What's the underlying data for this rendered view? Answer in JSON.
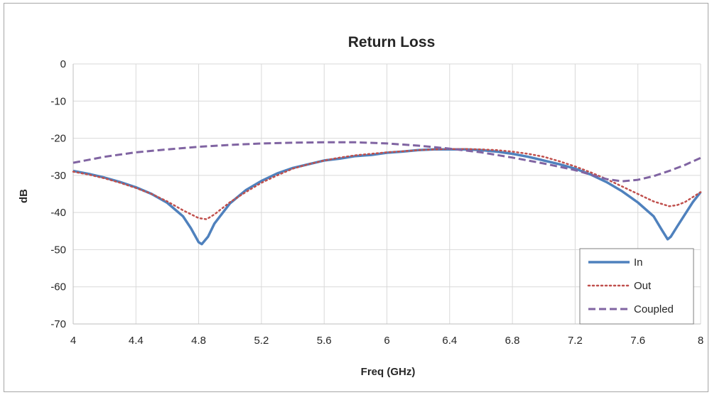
{
  "chart_data": {
    "type": "line",
    "title": "Return Loss",
    "xlabel": "Freq (GHz)",
    "ylabel": "dB",
    "xlim": [
      4,
      8
    ],
    "ylim": [
      -70,
      0
    ],
    "x_ticks": [
      "4",
      "4.4",
      "4.8",
      "5.2",
      "5.6",
      "6",
      "6.4",
      "6.8",
      "7.2",
      "7.6",
      "8"
    ],
    "y_ticks": [
      "0",
      "-10",
      "-20",
      "-30",
      "-40",
      "-50",
      "-60",
      "-70"
    ],
    "grid": true,
    "legend_position": "bottom-right",
    "series": [
      {
        "name": "In",
        "color": "#4f81bd",
        "style": "solid",
        "points": [
          [
            4.0,
            -28.8
          ],
          [
            4.1,
            -29.6
          ],
          [
            4.2,
            -30.6
          ],
          [
            4.3,
            -31.8
          ],
          [
            4.4,
            -33.2
          ],
          [
            4.5,
            -35.0
          ],
          [
            4.6,
            -37.4
          ],
          [
            4.7,
            -41.0
          ],
          [
            4.75,
            -44.2
          ],
          [
            4.8,
            -48.0
          ],
          [
            4.82,
            -48.5
          ],
          [
            4.86,
            -46.5
          ],
          [
            4.9,
            -43.0
          ],
          [
            5.0,
            -37.5
          ],
          [
            5.1,
            -34.0
          ],
          [
            5.2,
            -31.5
          ],
          [
            5.3,
            -29.5
          ],
          [
            5.4,
            -28.0
          ],
          [
            5.5,
            -27.0
          ],
          [
            5.6,
            -26.0
          ],
          [
            5.7,
            -25.5
          ],
          [
            5.8,
            -24.8
          ],
          [
            5.9,
            -24.5
          ],
          [
            6.0,
            -23.9
          ],
          [
            6.1,
            -23.6
          ],
          [
            6.2,
            -23.2
          ],
          [
            6.3,
            -23.0
          ],
          [
            6.4,
            -23.0
          ],
          [
            6.5,
            -23.0
          ],
          [
            6.6,
            -23.2
          ],
          [
            6.7,
            -23.6
          ],
          [
            6.8,
            -24.2
          ],
          [
            6.9,
            -25.0
          ],
          [
            7.0,
            -26.0
          ],
          [
            7.1,
            -27.0
          ],
          [
            7.2,
            -28.2
          ],
          [
            7.3,
            -29.8
          ],
          [
            7.4,
            -31.8
          ],
          [
            7.5,
            -34.3
          ],
          [
            7.6,
            -37.3
          ],
          [
            7.7,
            -41.0
          ],
          [
            7.75,
            -44.5
          ],
          [
            7.79,
            -47.2
          ],
          [
            7.81,
            -46.5
          ],
          [
            7.85,
            -43.8
          ],
          [
            7.9,
            -40.5
          ],
          [
            7.95,
            -37.2
          ],
          [
            8.0,
            -34.5
          ]
        ]
      },
      {
        "name": "Out",
        "color": "#c0504d",
        "style": "dotted",
        "points": [
          [
            4.0,
            -29.0
          ],
          [
            4.1,
            -29.8
          ],
          [
            4.2,
            -30.8
          ],
          [
            4.3,
            -32.0
          ],
          [
            4.4,
            -33.4
          ],
          [
            4.5,
            -35.0
          ],
          [
            4.6,
            -37.0
          ],
          [
            4.7,
            -39.4
          ],
          [
            4.8,
            -41.5
          ],
          [
            4.85,
            -41.8
          ],
          [
            4.9,
            -40.5
          ],
          [
            5.0,
            -37.2
          ],
          [
            5.1,
            -34.5
          ],
          [
            5.2,
            -32.0
          ],
          [
            5.3,
            -30.0
          ],
          [
            5.4,
            -28.2
          ],
          [
            5.5,
            -27.0
          ],
          [
            5.6,
            -26.0
          ],
          [
            5.7,
            -25.2
          ],
          [
            5.8,
            -24.6
          ],
          [
            5.9,
            -24.2
          ],
          [
            6.0,
            -23.8
          ],
          [
            6.1,
            -23.5
          ],
          [
            6.2,
            -23.2
          ],
          [
            6.3,
            -23.0
          ],
          [
            6.4,
            -22.9
          ],
          [
            6.5,
            -22.9
          ],
          [
            6.6,
            -23.0
          ],
          [
            6.7,
            -23.2
          ],
          [
            6.8,
            -23.6
          ],
          [
            6.9,
            -24.2
          ],
          [
            7.0,
            -25.0
          ],
          [
            7.1,
            -26.2
          ],
          [
            7.2,
            -27.6
          ],
          [
            7.3,
            -29.2
          ],
          [
            7.4,
            -31.0
          ],
          [
            7.5,
            -33.0
          ],
          [
            7.6,
            -35.0
          ],
          [
            7.7,
            -37.0
          ],
          [
            7.8,
            -38.3
          ],
          [
            7.85,
            -38.0
          ],
          [
            7.9,
            -37.2
          ],
          [
            8.0,
            -34.5
          ]
        ]
      },
      {
        "name": "Coupled",
        "color": "#8064a2",
        "style": "dashed",
        "points": [
          [
            4.0,
            -26.6
          ],
          [
            4.2,
            -25.0
          ],
          [
            4.4,
            -23.8
          ],
          [
            4.6,
            -23.0
          ],
          [
            4.8,
            -22.3
          ],
          [
            5.0,
            -21.8
          ],
          [
            5.2,
            -21.4
          ],
          [
            5.4,
            -21.2
          ],
          [
            5.6,
            -21.1
          ],
          [
            5.8,
            -21.1
          ],
          [
            6.0,
            -21.4
          ],
          [
            6.2,
            -22.0
          ],
          [
            6.4,
            -22.8
          ],
          [
            6.6,
            -23.8
          ],
          [
            6.8,
            -25.2
          ],
          [
            7.0,
            -26.8
          ],
          [
            7.2,
            -28.6
          ],
          [
            7.3,
            -29.8
          ],
          [
            7.4,
            -31.0
          ],
          [
            7.5,
            -31.6
          ],
          [
            7.6,
            -31.2
          ],
          [
            7.7,
            -30.2
          ],
          [
            7.8,
            -28.8
          ],
          [
            7.9,
            -27.2
          ],
          [
            8.0,
            -25.3
          ]
        ]
      }
    ]
  }
}
